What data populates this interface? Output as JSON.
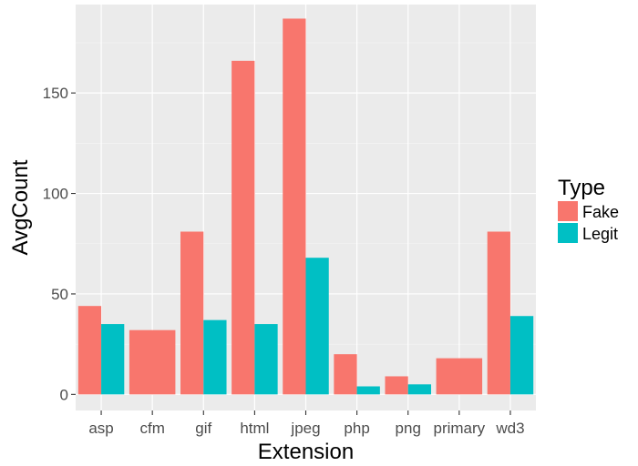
{
  "chart_data": {
    "type": "bar",
    "xlabel": "Extension",
    "ylabel": "AvgCount",
    "ylim": [
      -8,
      194
    ],
    "yticks": [
      0,
      50,
      100,
      150
    ],
    "grid": true,
    "legend": {
      "title": "Type",
      "position": "right"
    },
    "categories": [
      "asp",
      "cfm",
      "gif",
      "html",
      "jpeg",
      "php",
      "png",
      "primary",
      "wd3"
    ],
    "series": [
      {
        "name": "Fake",
        "color": "#F8766D",
        "values": [
          44,
          32,
          81,
          166,
          187,
          20,
          9,
          18,
          81
        ]
      },
      {
        "name": "Legit",
        "color": "#00BFC4",
        "values": [
          35,
          null,
          37,
          35,
          68,
          4,
          5,
          null,
          39
        ]
      }
    ]
  }
}
